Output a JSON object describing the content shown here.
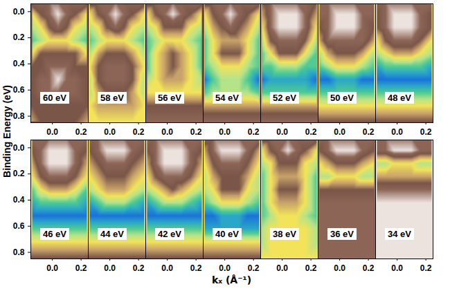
{
  "chart_data": {
    "type": "heatmap",
    "x_label": "kₓ (Å⁻¹)",
    "y_label": "Binding Energy (eV)",
    "xlim": [
      -0.15,
      0.25
    ],
    "ylim": [
      -0.06,
      0.85
    ],
    "xticks": [
      {
        "value": 0,
        "label": "0.0"
      },
      0.2
    ],
    "yticks": [
      {
        "value": 0,
        "label": "0.0"
      },
      0.2,
      0.4,
      0.6,
      0.8
    ],
    "k": [
      -0.14,
      -0.08,
      -0.02,
      0.04,
      0.1,
      0.16,
      0.24
    ],
    "energy": [
      -0.08,
      0.02,
      0.12,
      0.22,
      0.32,
      0.42,
      0.52,
      0.62,
      0.72,
      0.84
    ],
    "panels": [
      {
        "title": "60 eV",
        "intensity": [
          [
            2,
            2,
            2,
            2,
            2,
            2,
            2
          ],
          [
            5,
            3,
            2,
            1,
            2,
            3,
            5
          ],
          [
            6,
            5,
            3,
            2,
            3,
            5,
            6
          ],
          [
            7,
            6,
            5,
            5,
            5,
            6,
            7
          ],
          [
            5,
            3,
            3,
            3,
            3,
            3,
            5
          ],
          [
            3,
            3,
            2,
            2,
            2,
            3,
            3
          ],
          [
            3,
            2,
            2,
            1,
            2,
            2,
            3
          ],
          [
            3,
            2,
            2,
            2,
            2,
            2,
            3
          ],
          [
            3,
            3,
            3,
            3,
            3,
            3,
            3
          ],
          [
            4,
            3,
            3,
            3,
            3,
            3,
            4
          ]
        ]
      },
      {
        "title": "58 eV",
        "intensity": [
          [
            2,
            2,
            2,
            2,
            2,
            2,
            2
          ],
          [
            5,
            3,
            2,
            1,
            2,
            3,
            5
          ],
          [
            6,
            5,
            3,
            2,
            3,
            5,
            6
          ],
          [
            7,
            6,
            5,
            5,
            5,
            6,
            7
          ],
          [
            6,
            4,
            3,
            3,
            3,
            4,
            6
          ],
          [
            5,
            3,
            2,
            2,
            2,
            3,
            5
          ],
          [
            6,
            3,
            2,
            2,
            2,
            3,
            6
          ],
          [
            6,
            4,
            3,
            3,
            3,
            4,
            6
          ],
          [
            5,
            4,
            4,
            4,
            4,
            4,
            5
          ],
          [
            5,
            5,
            5,
            5,
            5,
            5,
            5
          ]
        ]
      },
      {
        "title": "56 eV",
        "intensity": [
          [
            2,
            2,
            2,
            2,
            2,
            2,
            2
          ],
          [
            5,
            3,
            2,
            1,
            2,
            3,
            5
          ],
          [
            6,
            5,
            3,
            3,
            3,
            5,
            6
          ],
          [
            7,
            6,
            5,
            5,
            5,
            6,
            7
          ],
          [
            7,
            5,
            4,
            3,
            4,
            5,
            7
          ],
          [
            7,
            5,
            4,
            3,
            4,
            5,
            7
          ],
          [
            6,
            5,
            4,
            4,
            4,
            5,
            6
          ],
          [
            5,
            5,
            5,
            5,
            5,
            5,
            5
          ],
          [
            3,
            3,
            3,
            3,
            3,
            3,
            3
          ],
          [
            2,
            2,
            2,
            2,
            2,
            2,
            2
          ]
        ]
      },
      {
        "title": "54 eV",
        "intensity": [
          [
            2,
            2,
            2,
            2,
            2,
            2,
            2
          ],
          [
            5,
            3,
            2,
            1,
            2,
            3,
            5
          ],
          [
            6,
            4,
            3,
            2,
            3,
            4,
            6
          ],
          [
            7,
            5,
            4,
            4,
            4,
            5,
            7
          ],
          [
            7,
            5,
            3,
            3,
            3,
            5,
            7
          ],
          [
            7,
            6,
            5,
            5,
            5,
            6,
            7
          ],
          [
            9,
            7,
            6,
            6,
            6,
            7,
            9
          ],
          [
            7,
            6,
            6,
            6,
            6,
            6,
            7
          ],
          [
            4,
            4,
            4,
            4,
            4,
            4,
            4
          ],
          [
            2,
            2,
            2,
            2,
            2,
            2,
            2
          ]
        ]
      },
      {
        "title": "52 eV",
        "intensity": [
          [
            3,
            2,
            2,
            2,
            2,
            2,
            3
          ],
          [
            4,
            2,
            1,
            1,
            1,
            2,
            4
          ],
          [
            5,
            2,
            1,
            1,
            1,
            2,
            5
          ],
          [
            6,
            3,
            2,
            2,
            2,
            3,
            6
          ],
          [
            7,
            5,
            3,
            3,
            3,
            5,
            7
          ],
          [
            7,
            7,
            6,
            6,
            6,
            7,
            7
          ],
          [
            9,
            8,
            8,
            8,
            8,
            8,
            9
          ],
          [
            7,
            7,
            7,
            7,
            7,
            7,
            7
          ],
          [
            4,
            4,
            4,
            4,
            4,
            4,
            4
          ],
          [
            2,
            2,
            2,
            2,
            2,
            2,
            2
          ]
        ]
      },
      {
        "title": "50 eV",
        "intensity": [
          [
            2,
            2,
            2,
            2,
            2,
            2,
            2
          ],
          [
            2,
            2,
            1,
            1,
            1,
            2,
            2
          ],
          [
            3,
            2,
            1,
            1,
            1,
            2,
            3
          ],
          [
            4,
            2,
            2,
            2,
            2,
            2,
            4
          ],
          [
            6,
            4,
            3,
            3,
            3,
            4,
            6
          ],
          [
            7,
            6,
            5,
            5,
            5,
            6,
            7
          ],
          [
            9,
            9,
            8,
            8,
            8,
            9,
            9
          ],
          [
            7,
            7,
            7,
            7,
            7,
            7,
            7
          ],
          [
            5,
            5,
            5,
            5,
            5,
            5,
            5
          ],
          [
            3,
            3,
            3,
            3,
            3,
            3,
            3
          ]
        ]
      },
      {
        "title": "48 eV",
        "intensity": [
          [
            2,
            2,
            2,
            2,
            2,
            2,
            2
          ],
          [
            3,
            2,
            1,
            1,
            1,
            2,
            3
          ],
          [
            3,
            2,
            1,
            1,
            1,
            2,
            3
          ],
          [
            5,
            3,
            2,
            2,
            2,
            3,
            5
          ],
          [
            6,
            5,
            4,
            4,
            4,
            5,
            6
          ],
          [
            8,
            7,
            7,
            7,
            7,
            7,
            8
          ],
          [
            9,
            9,
            9,
            9,
            9,
            9,
            9
          ],
          [
            7,
            7,
            7,
            7,
            7,
            7,
            7
          ],
          [
            5,
            5,
            5,
            5,
            5,
            5,
            5
          ],
          [
            3,
            3,
            3,
            3,
            3,
            3,
            3
          ]
        ]
      },
      {
        "title": "46 eV",
        "intensity": [
          [
            2,
            2,
            2,
            2,
            2,
            2,
            2
          ],
          [
            3,
            2,
            1,
            1,
            1,
            2,
            3
          ],
          [
            4,
            2,
            1,
            1,
            1,
            2,
            4
          ],
          [
            5,
            3,
            2,
            2,
            2,
            3,
            5
          ],
          [
            7,
            5,
            4,
            4,
            4,
            5,
            7
          ],
          [
            8,
            7,
            7,
            7,
            7,
            7,
            8
          ],
          [
            9,
            9,
            9,
            9,
            9,
            9,
            9
          ],
          [
            7,
            7,
            7,
            7,
            7,
            7,
            7
          ],
          [
            5,
            5,
            5,
            5,
            5,
            5,
            5
          ],
          [
            3,
            3,
            3,
            3,
            3,
            3,
            3
          ]
        ]
      },
      {
        "title": "44 eV",
        "intensity": [
          [
            2,
            2,
            2,
            2,
            2,
            2,
            2
          ],
          [
            3,
            2,
            1,
            1,
            1,
            2,
            3
          ],
          [
            4,
            3,
            2,
            2,
            2,
            3,
            4
          ],
          [
            5,
            4,
            3,
            3,
            3,
            4,
            5
          ],
          [
            6,
            5,
            4,
            4,
            4,
            5,
            6
          ],
          [
            8,
            7,
            6,
            6,
            6,
            7,
            8
          ],
          [
            9,
            9,
            9,
            9,
            9,
            9,
            9
          ],
          [
            7,
            7,
            7,
            7,
            7,
            7,
            7
          ],
          [
            5,
            5,
            5,
            5,
            5,
            5,
            5
          ],
          [
            3,
            3,
            3,
            3,
            3,
            3,
            3
          ]
        ]
      },
      {
        "title": "42 eV",
        "intensity": [
          [
            2,
            2,
            2,
            2,
            2,
            2,
            2
          ],
          [
            3,
            2,
            1,
            1,
            1,
            2,
            3
          ],
          [
            4,
            2,
            1,
            1,
            1,
            2,
            4
          ],
          [
            5,
            3,
            2,
            2,
            2,
            3,
            5
          ],
          [
            6,
            5,
            4,
            3,
            4,
            5,
            6
          ],
          [
            8,
            7,
            6,
            6,
            6,
            7,
            8
          ],
          [
            9,
            9,
            9,
            9,
            9,
            9,
            9
          ],
          [
            7,
            7,
            7,
            7,
            7,
            7,
            7
          ],
          [
            5,
            5,
            5,
            5,
            5,
            5,
            5
          ],
          [
            3,
            3,
            3,
            3,
            3,
            3,
            3
          ]
        ]
      },
      {
        "title": "40 eV",
        "intensity": [
          [
            2,
            2,
            2,
            2,
            2,
            2,
            2
          ],
          [
            4,
            2,
            1,
            1,
            1,
            2,
            4
          ],
          [
            5,
            3,
            2,
            2,
            2,
            3,
            5
          ],
          [
            6,
            4,
            3,
            3,
            3,
            4,
            6
          ],
          [
            6,
            5,
            3,
            3,
            3,
            5,
            6
          ],
          [
            7,
            6,
            5,
            5,
            5,
            6,
            7
          ],
          [
            9,
            9,
            8,
            8,
            8,
            9,
            9
          ],
          [
            8,
            8,
            8,
            8,
            8,
            8,
            8
          ],
          [
            5,
            5,
            5,
            5,
            5,
            5,
            5
          ],
          [
            3,
            3,
            3,
            3,
            3,
            3,
            3
          ]
        ]
      },
      {
        "title": "38 eV",
        "intensity": [
          [
            2,
            2,
            2,
            2,
            2,
            2,
            2
          ],
          [
            5,
            3,
            2,
            1,
            2,
            3,
            5
          ],
          [
            6,
            5,
            3,
            3,
            3,
            5,
            6
          ],
          [
            7,
            5,
            4,
            4,
            4,
            5,
            7
          ],
          [
            7,
            5,
            3,
            3,
            3,
            5,
            7
          ],
          [
            7,
            5,
            4,
            4,
            4,
            5,
            7
          ],
          [
            7,
            6,
            5,
            5,
            5,
            6,
            7
          ],
          [
            6,
            5,
            5,
            5,
            5,
            5,
            6
          ],
          [
            6,
            5,
            5,
            5,
            5,
            5,
            6
          ],
          [
            5,
            5,
            5,
            5,
            5,
            5,
            5
          ]
        ]
      },
      {
        "title": "36 eV",
        "intensity": [
          [
            2,
            2,
            2,
            2,
            2,
            2,
            2
          ],
          [
            3,
            2,
            1,
            1,
            1,
            2,
            3
          ],
          [
            5,
            4,
            3,
            3,
            3,
            4,
            5
          ],
          [
            6,
            6,
            5,
            5,
            5,
            6,
            6
          ],
          [
            3,
            3,
            3,
            3,
            3,
            3,
            3
          ],
          [
            2,
            2,
            2,
            2,
            2,
            2,
            2
          ],
          [
            2,
            2,
            2,
            2,
            2,
            2,
            2
          ],
          [
            2,
            2,
            2,
            2,
            2,
            2,
            2
          ],
          [
            2,
            2,
            2,
            2,
            2,
            2,
            2
          ],
          [
            2,
            2,
            2,
            2,
            2,
            2,
            2
          ]
        ]
      },
      {
        "title": "34 eV",
        "intensity": [
          [
            2,
            2,
            2,
            2,
            2,
            2,
            2
          ],
          [
            2,
            2,
            1,
            1,
            1,
            2,
            2
          ],
          [
            6,
            6,
            5,
            5,
            5,
            6,
            6
          ],
          [
            4,
            4,
            4,
            4,
            4,
            4,
            4
          ],
          [
            2,
            2,
            2,
            2,
            2,
            2,
            2
          ],
          [
            1,
            1,
            1,
            1,
            1,
            1,
            1
          ],
          [
            1,
            1,
            1,
            1,
            1,
            1,
            1
          ],
          [
            1,
            1,
            1,
            1,
            1,
            1,
            1
          ],
          [
            1,
            1,
            1,
            1,
            1,
            1,
            1
          ],
          [
            1,
            1,
            1,
            1,
            1,
            1,
            1
          ]
        ]
      }
    ]
  }
}
